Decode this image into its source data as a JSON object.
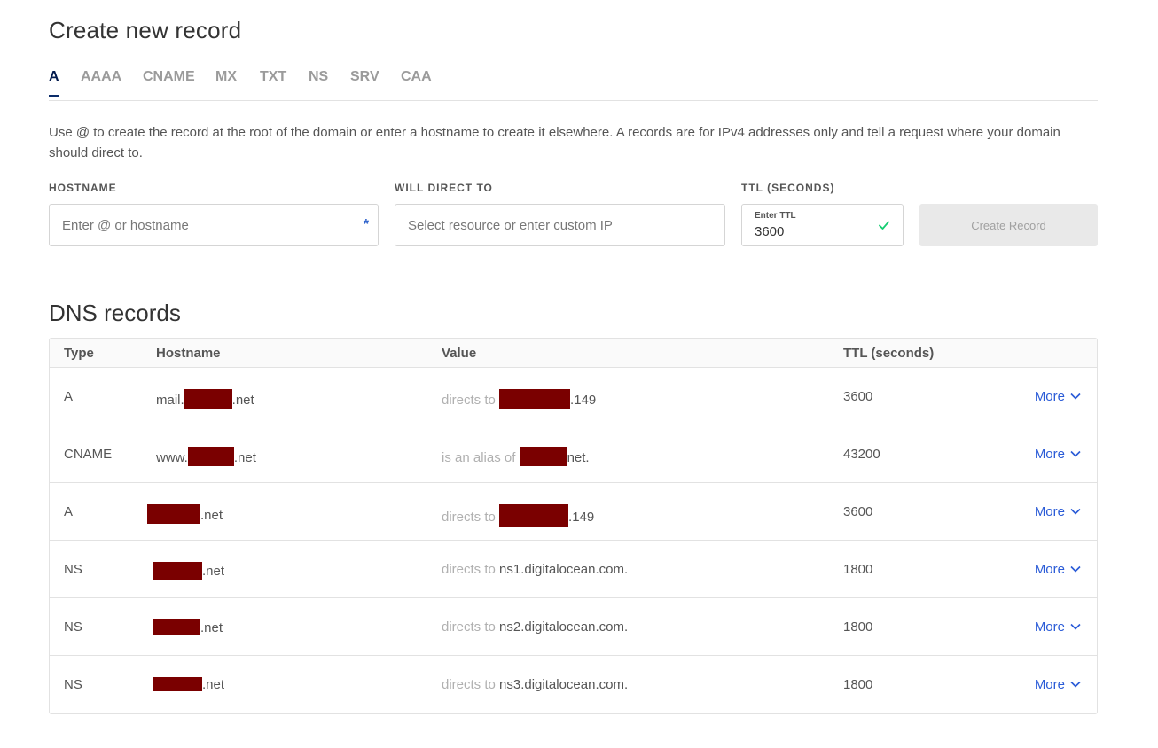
{
  "page": {
    "title": "Create new record"
  },
  "tabs": [
    {
      "label": "A"
    },
    {
      "label": "AAAA"
    },
    {
      "label": "CNAME"
    },
    {
      "label": "MX"
    },
    {
      "label": "TXT"
    },
    {
      "label": "NS"
    },
    {
      "label": "SRV"
    },
    {
      "label": "CAA"
    }
  ],
  "description": "Use @ to create the record at the root of the domain or enter a hostname to create it elsewhere. A records are for IPv4 addresses only and tell a request where your domain should direct to.",
  "form": {
    "hostname_label": "HOSTNAME",
    "hostname_placeholder": "Enter @ or hostname",
    "hostname_required": "*",
    "direct_label": "WILL DIRECT TO",
    "direct_placeholder": "Select resource or enter custom IP",
    "ttl_label": "TTL (SECONDS)",
    "ttl_inner_label": "Enter TTL",
    "ttl_value": "3600",
    "create_button": "Create Record"
  },
  "dns": {
    "title": "DNS records",
    "headers": {
      "type": "Type",
      "hostname": "Hostname",
      "value": "Value",
      "ttl": "TTL (seconds)"
    },
    "more_label": "More",
    "rows": [
      {
        "type": "A",
        "host_prefix": "mail.",
        "host_suffix": ".net",
        "value_prefix": "directs to",
        "value_text": ".149",
        "ttl": "3600"
      },
      {
        "type": "CNAME",
        "host_prefix": "www.",
        "host_suffix": ".net",
        "value_prefix": "is an alias of",
        "value_text": "net.",
        "ttl": "43200"
      },
      {
        "type": "A",
        "host_prefix": "",
        "host_suffix": ".net",
        "value_prefix": "directs to",
        "value_text": ".149",
        "ttl": "3600"
      },
      {
        "type": "NS",
        "host_prefix": "",
        "host_suffix": ".net",
        "value_prefix": "directs to",
        "value_text": "ns1.digitalocean.com.",
        "ttl": "1800"
      },
      {
        "type": "NS",
        "host_prefix": "",
        "host_suffix": ".net",
        "value_prefix": "directs to",
        "value_text": "ns2.digitalocean.com.",
        "ttl": "1800"
      },
      {
        "type": "NS",
        "host_prefix": "",
        "host_suffix": ".net",
        "value_prefix": "directs to",
        "value_text": "ns3.digitalocean.com.",
        "ttl": "1800"
      }
    ]
  },
  "colors": {
    "accent": "#2a5bd7",
    "active_tab": "#031b4e",
    "redaction": "#7a0000",
    "check": "#15cd72"
  }
}
